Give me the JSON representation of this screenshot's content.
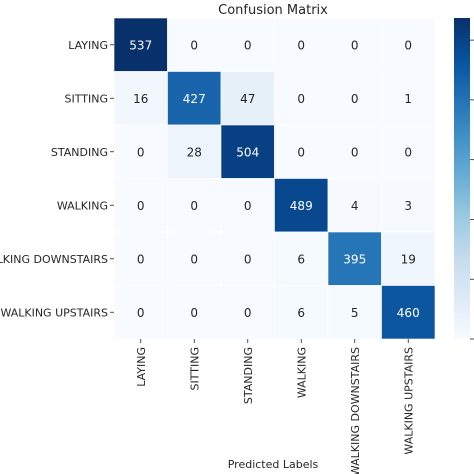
{
  "chart_data": {
    "type": "heatmap",
    "title": "Confusion Matrix",
    "xlabel": "Predicted Labels",
    "ylabel": "",
    "row_labels": [
      "LAYING",
      "SITTING",
      "STANDING",
      "WALKING",
      "WALKING DOWNSTAIRS",
      "WALKING UPSTAIRS"
    ],
    "col_labels": [
      "LAYING",
      "SITTING",
      "STANDING",
      "WALKING",
      "WALKING DOWNSTAIRS",
      "WALKING UPSTAIRS"
    ],
    "values": [
      [
        537,
        0,
        0,
        0,
        0,
        0
      ],
      [
        16,
        427,
        47,
        0,
        0,
        1
      ],
      [
        0,
        28,
        504,
        0,
        0,
        0
      ],
      [
        0,
        0,
        0,
        489,
        4,
        3
      ],
      [
        0,
        0,
        0,
        6,
        395,
        19
      ],
      [
        0,
        0,
        0,
        6,
        5,
        460
      ]
    ],
    "value_range": [
      0,
      537
    ],
    "colormap": "Blues",
    "colors": {
      "low": "#f7fbff",
      "high": "#08306b",
      "text_dark": "#262626",
      "text_light": "#ffffff"
    },
    "colorbar": true,
    "grid": false
  }
}
